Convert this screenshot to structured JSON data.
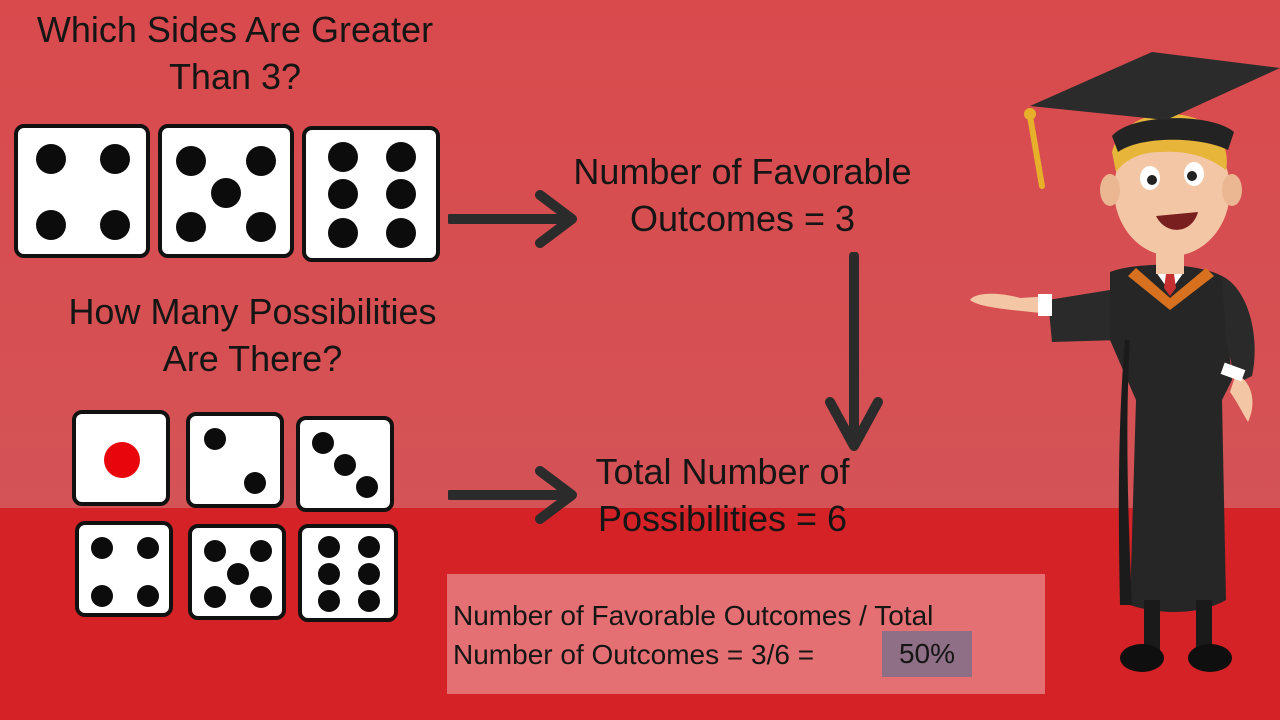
{
  "questions": {
    "sides_greater": "Which Sides Are Greater Than 3?",
    "possibilities": "How Many Possibilities Are There?"
  },
  "labels": {
    "favorable": "Number of Favorable Outcomes = 3",
    "total": "Total Number of Possibilities = 6"
  },
  "formula": {
    "line1": "Number of Favorable Outcomes / Total",
    "line2": "Number of Outcomes = 3/6 =",
    "result": "50%"
  },
  "dice": {
    "favorable_faces": [
      4,
      5,
      6
    ],
    "all_faces": [
      1,
      2,
      3,
      4,
      5,
      6
    ]
  },
  "colors": {
    "background": "#d8464a",
    "floor": "#d42226",
    "formula_box": "#e57073",
    "result_highlight": "#8e6f86",
    "one_pip": "#e8050b"
  }
}
